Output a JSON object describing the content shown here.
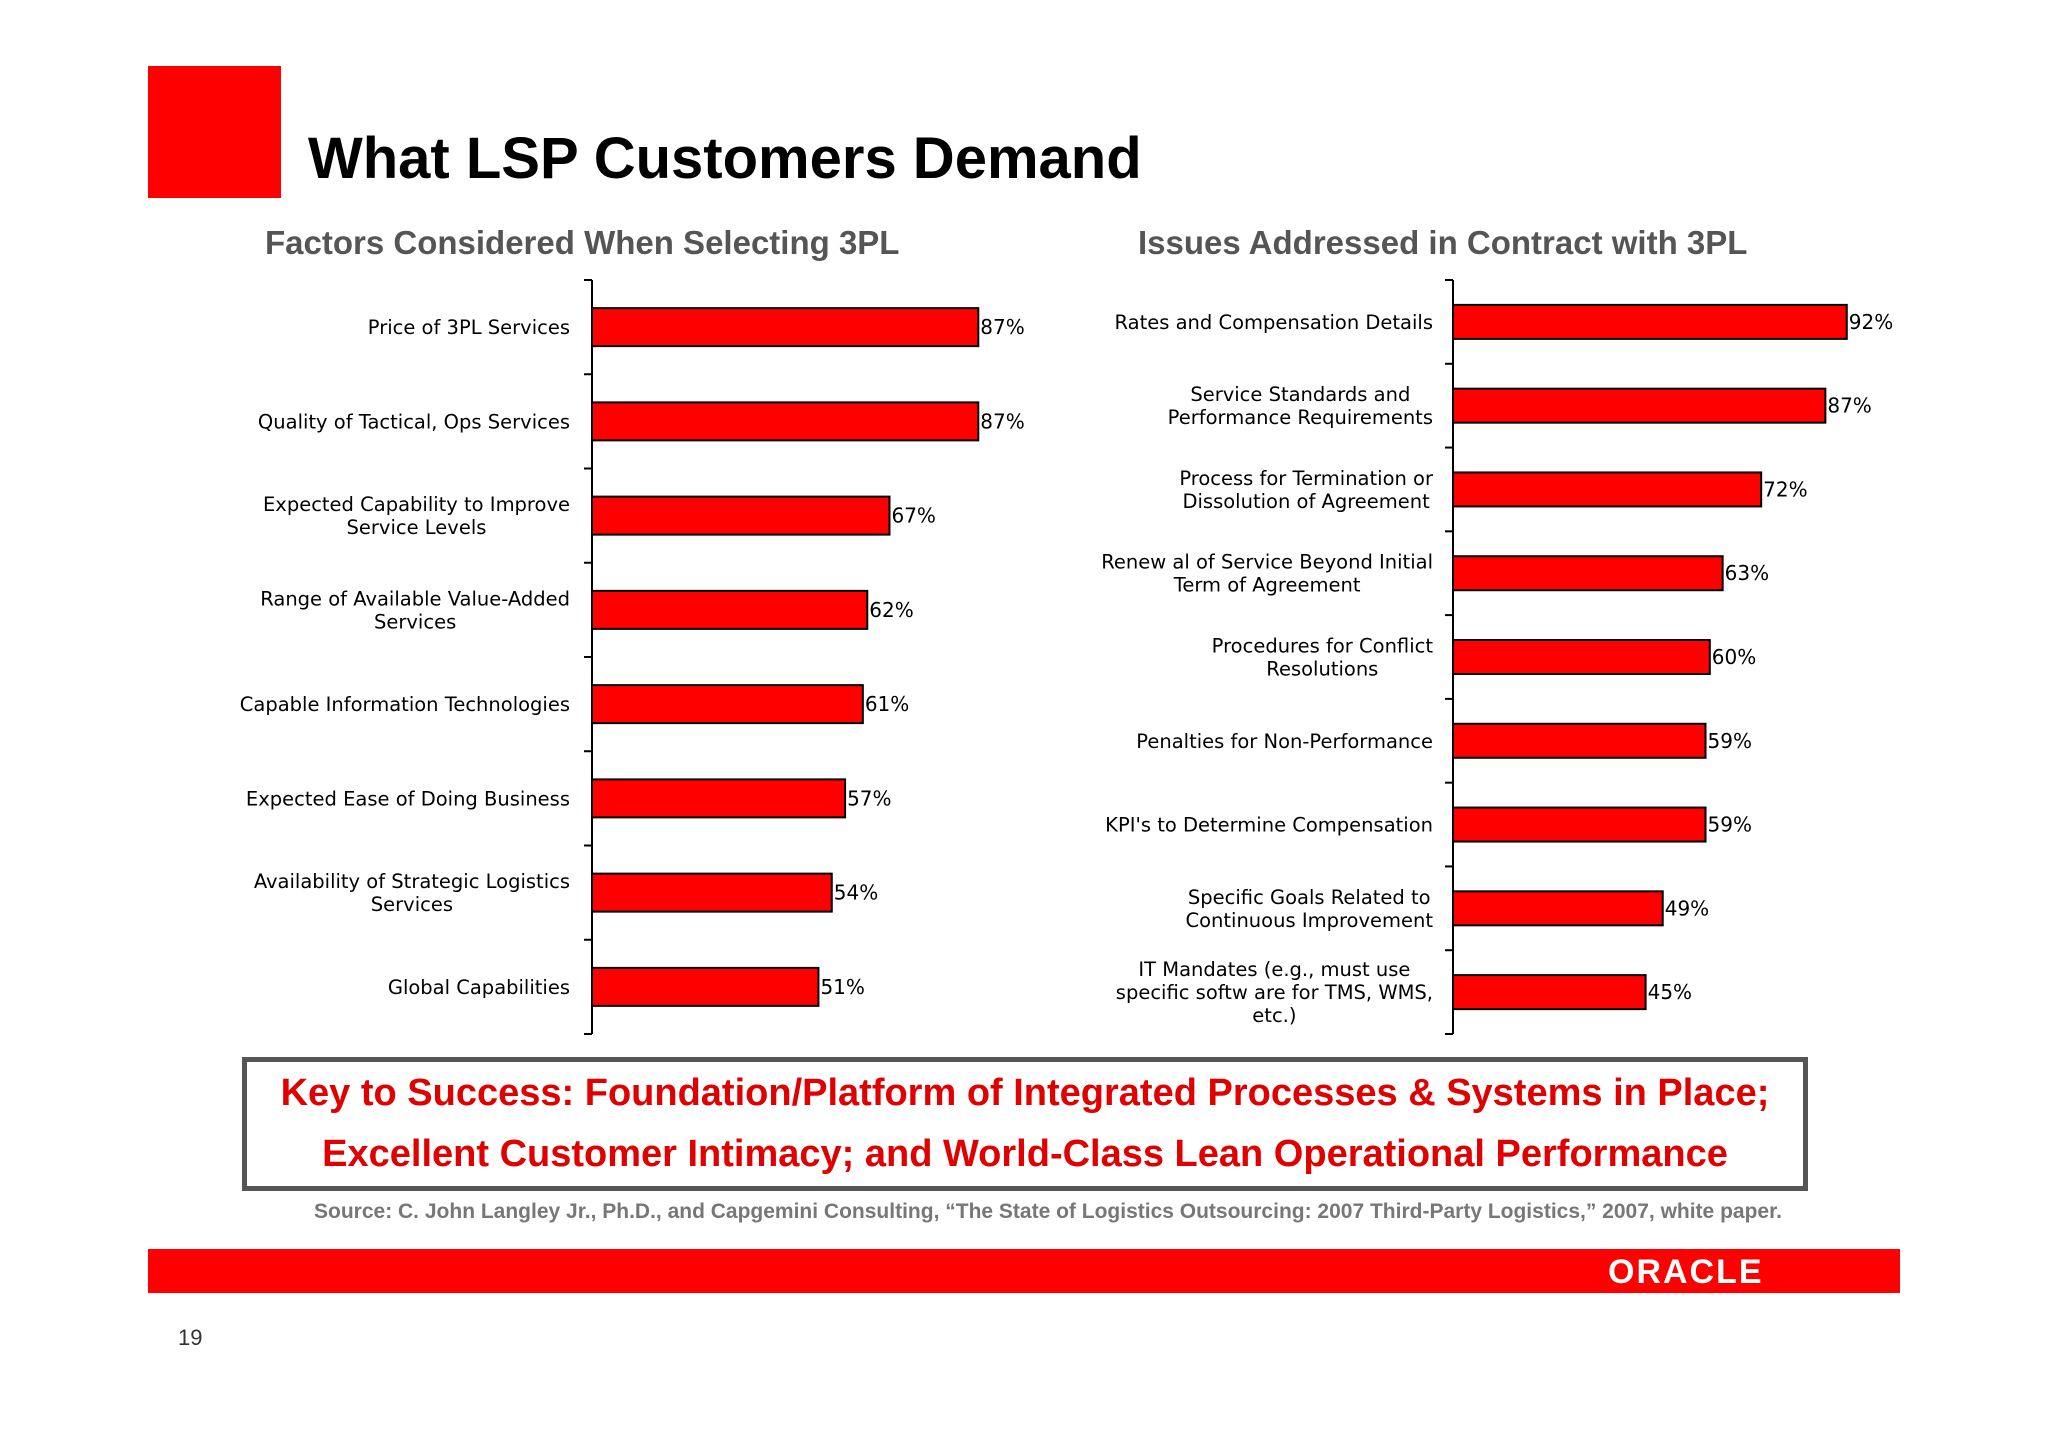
{
  "slide": {
    "title": "What LSP Customers Demand",
    "key_to_success": [
      "Key to Success: Foundation/Platform of Integrated Processes & Systems in Place;",
      "Excellent Customer Intimacy; and World-Class Lean Operational Performance"
    ],
    "source": "Source: C. John Langley Jr., Ph.D., and Capgemini Consulting, “The State of Logistics Outsourcing: 2007 Third-Party Logistics,” 2007, white paper.",
    "logo_text": "ORACLE",
    "page_number": "19",
    "colors": {
      "accent": "#ff0000",
      "bar": "#ff0000",
      "key_text": "#e00000",
      "subtitle": "#555555"
    }
  },
  "chart_data": [
    {
      "type": "bar",
      "orientation": "horizontal",
      "title": "Factors Considered When Selecting 3PL",
      "categories": [
        [
          "Price of 3PL Services"
        ],
        [
          "Quality of Tactical, Ops Services"
        ],
        [
          "Expected Capability to Improve",
          "Service Levels"
        ],
        [
          "Range of Available Value-Added",
          "Services"
        ],
        [
          "Capable Information Technologies"
        ],
        [
          "Expected Ease of Doing Business"
        ],
        [
          "Availability of Strategic Logistics",
          "Services"
        ],
        [
          "Global Capabilities"
        ]
      ],
      "values": [
        87,
        87,
        67,
        62,
        61,
        57,
        54,
        51
      ],
      "value_labels": [
        "87%",
        "87%",
        "67%",
        "62%",
        "61%",
        "57%",
        "54%",
        "51%"
      ],
      "xlim": [
        0,
        100
      ],
      "grid": false,
      "legend": "none"
    },
    {
      "type": "bar",
      "orientation": "horizontal",
      "title": "Issues Addressed in Contract with 3PL",
      "categories": [
        [
          "Rates and Compensation Details"
        ],
        [
          "Service Standards and",
          "Performance Requirements"
        ],
        [
          "Process for Termination or",
          "Dissolution of Agreement"
        ],
        [
          "Renew al of Service Beyond Initial",
          "Term of Agreement"
        ],
        [
          "Procedures for Conflict",
          "Resolutions"
        ],
        [
          "Penalties for Non-Performance"
        ],
        [
          "KPI's to Determine Compensation"
        ],
        [
          "Specific Goals Related to",
          "Continuous Improvement"
        ],
        [
          "IT Mandates (e.g., must use",
          "specific softw are for TMS, WMS,",
          "etc.)"
        ]
      ],
      "values": [
        92,
        87,
        72,
        63,
        60,
        59,
        59,
        49,
        45
      ],
      "value_labels": [
        "92%",
        "87%",
        "72%",
        "63%",
        "60%",
        "59%",
        "59%",
        "49%",
        "45%"
      ],
      "xlim": [
        0,
        100
      ],
      "grid": false,
      "legend": "none"
    }
  ]
}
